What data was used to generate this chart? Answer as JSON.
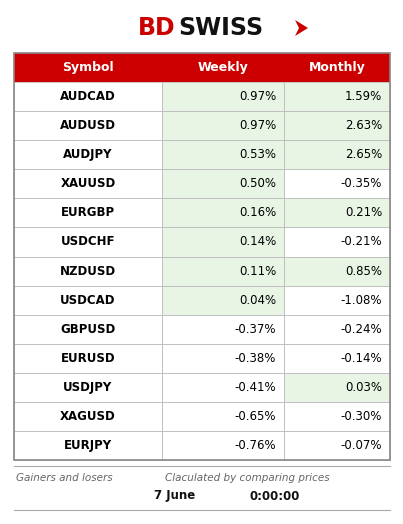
{
  "symbols": [
    "AUDCAD",
    "AUDUSD",
    "AUDJPY",
    "XAUUSD",
    "EURGBP",
    "USDCHF",
    "NZDUSD",
    "USDCAD",
    "GBPUSD",
    "EURUSD",
    "USDJPY",
    "XAGUSD",
    "EURJPY"
  ],
  "weekly": [
    "0.97%",
    "0.97%",
    "0.53%",
    "0.50%",
    "0.16%",
    "0.14%",
    "0.11%",
    "0.04%",
    "-0.37%",
    "-0.38%",
    "-0.41%",
    "-0.65%",
    "-0.76%"
  ],
  "monthly": [
    "1.59%",
    "2.63%",
    "2.65%",
    "-0.35%",
    "0.21%",
    "-0.21%",
    "0.85%",
    "-1.08%",
    "-0.24%",
    "-0.14%",
    "0.03%",
    "-0.30%",
    "-0.07%"
  ],
  "weekly_green": [
    true,
    true,
    true,
    true,
    true,
    true,
    true,
    true,
    false,
    false,
    false,
    false,
    false
  ],
  "monthly_green": [
    true,
    true,
    true,
    false,
    true,
    false,
    true,
    false,
    false,
    false,
    true,
    false,
    false
  ],
  "header_bg": "#CC0000",
  "header_text_color": "#FFFFFF",
  "green_cell_color": "#e8f5e4",
  "border_color": "#BBBBBB",
  "footer_text1": "Gainers and losers",
  "footer_text2": "Claculated by comparing prices",
  "footer_date": "7 June",
  "footer_time": "0:00:00",
  "bd_color": "#CC0000",
  "swiss_color": "#111111",
  "arrow_color": "#CC0000"
}
